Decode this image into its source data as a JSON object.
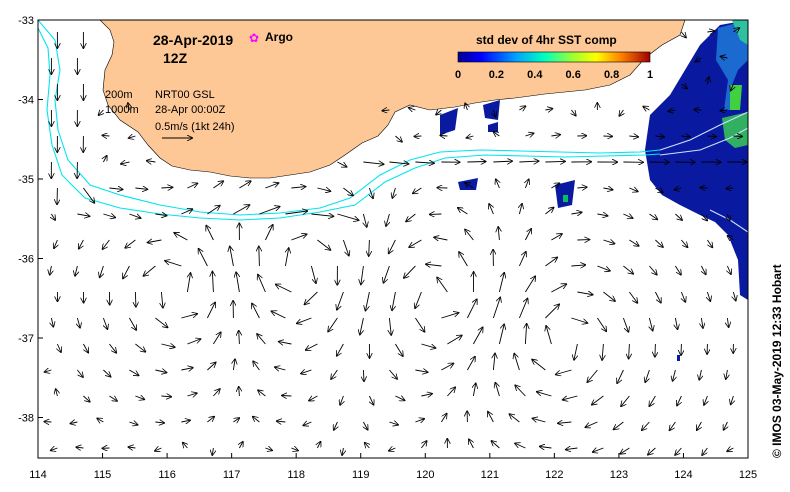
{
  "map": {
    "date": "28-Apr-2019",
    "hour": "12Z",
    "argo_label": "Argo",
    "isobath_200": "200m",
    "isobath_1000": "1000m",
    "product": "NRT00 GSL",
    "product_time": "28-Apr 00:00Z",
    "scale_label": "0.5m/s (1kt 24h)",
    "colorbar_title": "std dev of 4hr SST comp",
    "colorbar_ticks": [
      "0",
      "0.2",
      "0.4",
      "0.6",
      "0.8",
      "1"
    ],
    "credit": "© IMOS 03-May-2019 12:33 Hobart",
    "x_ticks": [
      "114",
      "115",
      "116",
      "117",
      "118",
      "119",
      "120",
      "121",
      "122",
      "123",
      "124",
      "125"
    ],
    "y_ticks": [
      "-33",
      "-34",
      "-35",
      "-36",
      "-37",
      "-38"
    ],
    "colors": {
      "land": "#fdc896",
      "isobath": "#00e5f0",
      "argo": "#ff00ff",
      "sst_low": "#0a1aa0",
      "sst_mid": "#00c060",
      "sst_high": "#ffff00"
    }
  }
}
